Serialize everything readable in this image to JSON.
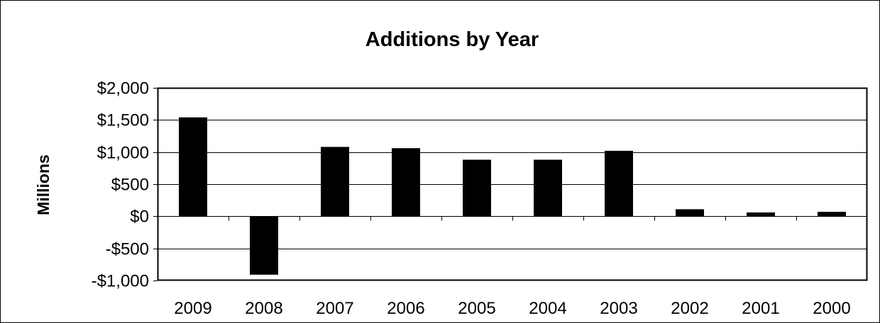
{
  "chart_data": {
    "type": "bar",
    "title": "Additions by Year",
    "xlabel": "",
    "ylabel": "Millions",
    "categories": [
      "2009",
      "2008",
      "2007",
      "2006",
      "2005",
      "2004",
      "2003",
      "2002",
      "2001",
      "2000"
    ],
    "values": [
      1540,
      -910,
      1080,
      1060,
      880,
      880,
      1020,
      110,
      60,
      70
    ],
    "ylim": [
      -1000,
      2000
    ],
    "yticks": [
      2000,
      1500,
      1000,
      500,
      0,
      -500,
      -1000
    ],
    "ytick_labels": [
      "$2,000",
      "$1,500",
      "$1,000",
      "$500",
      "$0",
      "-$500",
      "-$1,000"
    ],
    "grid": true,
    "legend": "none",
    "bar_color": "#000000",
    "gridline_color": "#000000"
  }
}
